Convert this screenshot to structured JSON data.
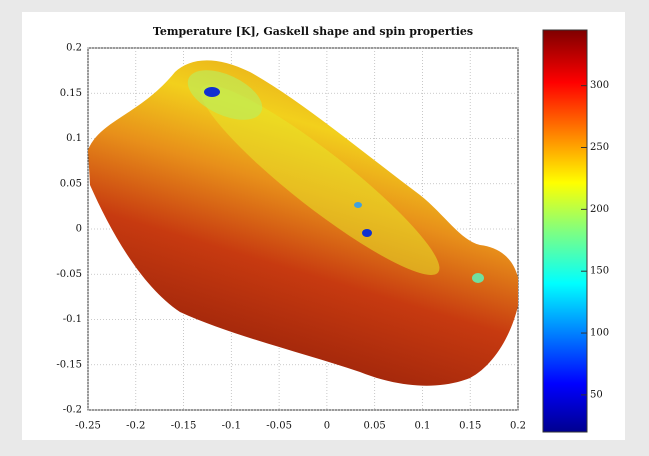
{
  "chart_data": {
    "type": "image",
    "title": "Temperature [K], Gaskell shape and spin properties",
    "xlim": [
      -0.25,
      0.2
    ],
    "xticks": [
      -0.25,
      -0.2,
      -0.15,
      -0.1,
      -0.05,
      0,
      0.05,
      0.1,
      0.15,
      0.2
    ],
    "ylim": [
      -0.2,
      0.2
    ],
    "yticks": [
      -0.2,
      -0.15,
      -0.1,
      -0.05,
      0,
      0.05,
      0.1,
      0.15,
      0.2
    ],
    "clim": [
      20,
      345
    ],
    "cticks": [
      50,
      100,
      150,
      200,
      250,
      300
    ],
    "grid": true
  }
}
